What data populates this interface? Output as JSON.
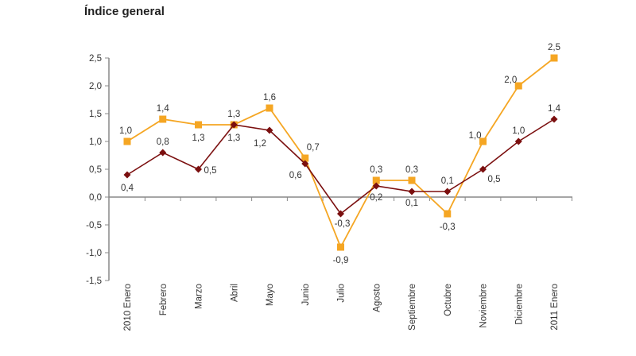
{
  "chart_data": {
    "type": "line",
    "title": "Índice general",
    "xlabel": "",
    "ylabel": "",
    "categories": [
      "2010 Enero",
      "Febrero",
      "Marzo",
      "Abril",
      "Mayo",
      "Junio",
      "Julio",
      "Agosto",
      "Septiembre",
      "Octubre",
      "Noviembre",
      "Diciembre",
      "2011 Enero"
    ],
    "ylim": [
      -1.5,
      2.5
    ],
    "yticks": [
      "2,5",
      "2,0",
      "1,5",
      "1,0",
      "0,5",
      "0,0",
      "-0,5",
      "-1,0",
      "-1,5"
    ],
    "grid": false,
    "legend": "none",
    "series": [
      {
        "color": "#f5a623",
        "marker": "square",
        "values": [
          1.0,
          1.4,
          1.3,
          1.3,
          1.6,
          0.7,
          -0.9,
          0.3,
          0.3,
          -0.3,
          1.0,
          2.0,
          2.5
        ],
        "labels": [
          "1,0",
          "1,4",
          "1,3",
          "1,3",
          "1,6",
          "0,7",
          "-0,9",
          "0,3",
          "0,3",
          "-0,3",
          "1,0",
          "2,0",
          "2,5"
        ]
      },
      {
        "color": "#7b0f0f",
        "marker": "diamond",
        "values": [
          0.4,
          0.8,
          0.5,
          1.3,
          1.2,
          0.6,
          -0.3,
          0.2,
          0.1,
          0.1,
          0.5,
          1.0,
          1.4
        ],
        "labels": [
          "0,4",
          "0,8",
          "0,5",
          "1,3",
          "1,2",
          "0,6",
          "-0,3",
          "0,2",
          "0,1",
          "0,1",
          "0,5",
          "1,0",
          "1,4"
        ]
      }
    ]
  }
}
